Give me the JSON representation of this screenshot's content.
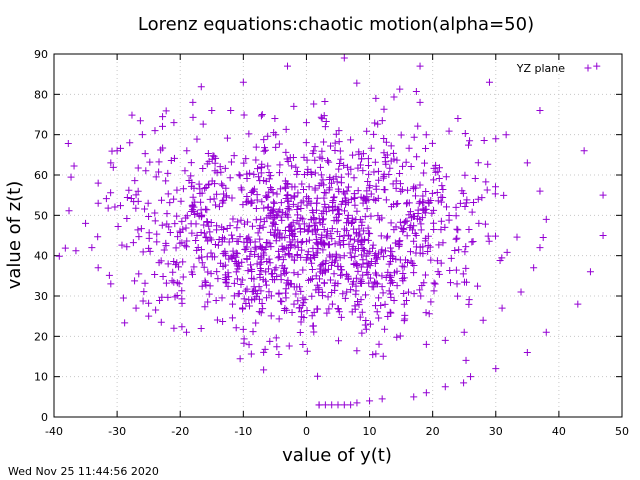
{
  "chart_data": {
    "type": "scatter",
    "title": "Lorenz equations:chaotic motion(alpha=50)",
    "xlabel": "value of y(t)",
    "ylabel": "value of z(t)",
    "xlim": [
      -40,
      50
    ],
    "ylim": [
      0,
      90
    ],
    "xticks": [
      "-40",
      "-30",
      "-20",
      "-10",
      "0",
      "10",
      "20",
      "30",
      "40",
      "50"
    ],
    "yticks": [
      "0",
      "10",
      "20",
      "30",
      "40",
      "50",
      "60",
      "70",
      "80",
      "90"
    ],
    "grid": true,
    "legend_position": "top-right",
    "series": [
      {
        "name": "YZ plane",
        "marker": "+",
        "color": "#9400d3",
        "trajectory_start": [
          2,
          3
        ],
        "trajectory_start_values": [
          [
            2,
            3
          ],
          [
            3,
            3
          ],
          [
            4,
            3
          ],
          [
            5,
            3
          ],
          [
            6,
            3
          ],
          [
            7,
            3
          ],
          [
            8,
            3.5
          ],
          [
            10,
            4
          ],
          [
            12,
            4.5
          ]
        ],
        "outer_sparse_points": [
          [
            -35,
            48
          ],
          [
            -34,
            42
          ],
          [
            -33,
            37
          ],
          [
            -31,
            33
          ],
          [
            -29,
            29.5
          ],
          [
            -27,
            27
          ],
          [
            -25,
            25
          ],
          [
            -23,
            23.5
          ],
          [
            -21,
            22
          ],
          [
            -19,
            21
          ],
          [
            -33,
            53
          ],
          [
            -33,
            58
          ],
          [
            -31,
            63
          ],
          [
            -30,
            66
          ],
          [
            -28,
            68
          ],
          [
            -26,
            70
          ],
          [
            -24,
            71
          ],
          [
            -21,
            73
          ],
          [
            -18,
            78
          ],
          [
            -15,
            76
          ],
          [
            -12,
            76
          ],
          [
            -10,
            83
          ],
          [
            -7,
            75
          ],
          [
            -5,
            74
          ],
          [
            -3,
            87
          ],
          [
            -2,
            77
          ],
          [
            0,
            73
          ],
          [
            3,
            72
          ],
          [
            6,
            89
          ],
          [
            11,
            79
          ],
          [
            18,
            87
          ],
          [
            18,
            78
          ],
          [
            24,
            74
          ],
          [
            29,
            83
          ],
          [
            30,
            69
          ],
          [
            35,
            63
          ],
          [
            37,
            76
          ],
          [
            37,
            56
          ],
          [
            38,
            49
          ],
          [
            37,
            42
          ],
          [
            36,
            37
          ],
          [
            34,
            31
          ],
          [
            31,
            27
          ],
          [
            28,
            24
          ],
          [
            25,
            21
          ],
          [
            22,
            19
          ],
          [
            19,
            18
          ],
          [
            35,
            16
          ],
          [
            30,
            12
          ],
          [
            26,
            10
          ],
          [
            22,
            7.5
          ],
          [
            19,
            6
          ],
          [
            17,
            5
          ],
          [
            43,
            28
          ],
          [
            38,
            21
          ],
          [
            45,
            36
          ],
          [
            47,
            45
          ],
          [
            47,
            55
          ],
          [
            44,
            66
          ],
          [
            46,
            87
          ]
        ],
        "left_lobe_center": [
          -11,
          50
        ],
        "right_lobe_center": [
          13,
          48
        ]
      }
    ]
  },
  "footer": {
    "timestamp": "Wed Nov 25 11:44:56 2020"
  }
}
